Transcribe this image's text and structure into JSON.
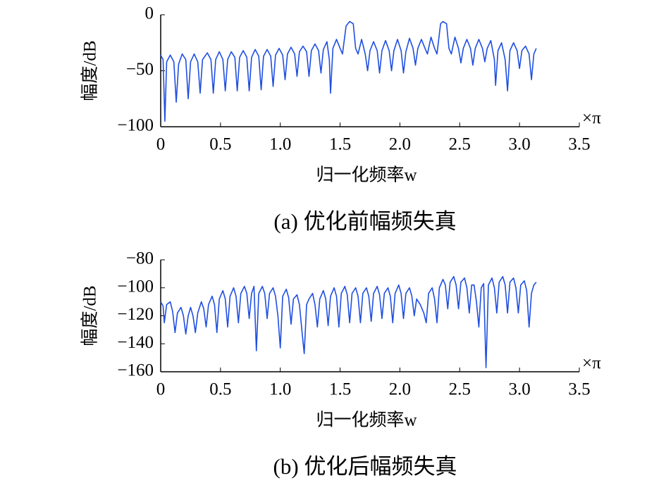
{
  "chart_data": [
    {
      "type": "line",
      "title": "(a) 优化前幅频失真",
      "ylabel": "幅度/dB",
      "xlabel": "归一化频率w",
      "xunit": "×π",
      "color": "#1f4fe0",
      "xlim": [
        0,
        3.5
      ],
      "ylim": [
        -100,
        0
      ],
      "xticks": [
        0,
        0.5,
        {
          "value": 1,
          "label": "1.0"
        },
        1.5,
        {
          "value": 2,
          "label": "2.0"
        },
        2.5,
        {
          "value": 3,
          "label": "3.0"
        },
        3.5
      ],
      "yticks": [
        {
          "value": -100,
          "label": "−100"
        },
        {
          "value": -50,
          "label": "−50"
        },
        0
      ],
      "x": [
        0,
        0.02,
        0.035,
        0.05,
        0.08,
        0.11,
        0.13,
        0.15,
        0.18,
        0.21,
        0.23,
        0.25,
        0.28,
        0.31,
        0.33,
        0.35,
        0.39,
        0.42,
        0.44,
        0.46,
        0.49,
        0.52,
        0.54,
        0.56,
        0.59,
        0.62,
        0.64,
        0.66,
        0.69,
        0.72,
        0.74,
        0.76,
        0.79,
        0.82,
        0.84,
        0.86,
        0.89,
        0.92,
        0.94,
        0.96,
        0.99,
        1.02,
        1.04,
        1.06,
        1.09,
        1.12,
        1.14,
        1.16,
        1.19,
        1.22,
        1.24,
        1.26,
        1.29,
        1.32,
        1.34,
        1.36,
        1.39,
        1.41,
        1.42,
        1.44,
        1.47,
        1.5,
        1.52,
        1.55,
        1.58,
        1.61,
        1.63,
        1.65,
        1.68,
        1.71,
        1.73,
        1.75,
        1.78,
        1.81,
        1.83,
        1.85,
        1.88,
        1.91,
        1.93,
        1.95,
        1.98,
        2.01,
        2.03,
        2.05,
        2.08,
        2.11,
        2.13,
        2.15,
        2.18,
        2.21,
        2.23,
        2.26,
        2.29,
        2.31,
        2.34,
        2.36,
        2.39,
        2.41,
        2.43,
        2.46,
        2.49,
        2.51,
        2.53,
        2.56,
        2.59,
        2.61,
        2.63,
        2.66,
        2.69,
        2.71,
        2.73,
        2.76,
        2.79,
        2.8,
        2.82,
        2.85,
        2.88,
        2.9,
        2.92,
        2.95,
        2.98,
        3.0,
        3.02,
        3.05,
        3.08,
        3.1,
        3.12,
        3.14
      ],
      "values": [
        -36,
        -40,
        -95,
        -42,
        -36,
        -42,
        -78,
        -44,
        -35,
        -40,
        -75,
        -42,
        -35,
        -42,
        -70,
        -40,
        -34,
        -40,
        -70,
        -40,
        -33,
        -40,
        -68,
        -40,
        -33,
        -38,
        -68,
        -38,
        -32,
        -38,
        -68,
        -38,
        -31,
        -37,
        -67,
        -37,
        -31,
        -37,
        -64,
        -36,
        -30,
        -36,
        -58,
        -35,
        -29,
        -35,
        -55,
        -33,
        -28,
        -33,
        -55,
        -32,
        -26,
        -32,
        -52,
        -31,
        -24,
        -40,
        -70,
        -30,
        -22,
        -30,
        -35,
        -10,
        -6,
        -8,
        -30,
        -35,
        -22,
        -35,
        -50,
        -32,
        -24,
        -32,
        -52,
        -32,
        -23,
        -32,
        -50,
        -32,
        -22,
        -32,
        -52,
        -33,
        -21,
        -30,
        -45,
        -30,
        -22,
        -30,
        -35,
        -20,
        -30,
        -35,
        -8,
        -6,
        -8,
        -30,
        -35,
        -20,
        -30,
        -43,
        -30,
        -22,
        -30,
        -45,
        -30,
        -22,
        -30,
        -42,
        -30,
        -23,
        -40,
        -63,
        -32,
        -25,
        -40,
        -68,
        -32,
        -25,
        -32,
        -48,
        -32,
        -28,
        -35,
        -58,
        -35,
        -30
      ]
    },
    {
      "type": "line",
      "title": "(b) 优化后幅频失真",
      "ylabel": "幅度/dB",
      "xlabel": "归一化频率w",
      "xunit": "×π",
      "color": "#1f4fe0",
      "xlim": [
        0,
        3.5
      ],
      "ylim": [
        -160,
        -80
      ],
      "xticks": [
        0,
        0.5,
        {
          "value": 1,
          "label": "1.0"
        },
        1.5,
        {
          "value": 2,
          "label": "2.0"
        },
        2.5,
        {
          "value": 3,
          "label": "3.0"
        },
        3.5
      ],
      "yticks": [
        {
          "value": -160,
          "label": "−160"
        },
        {
          "value": -140,
          "label": "−140"
        },
        {
          "value": -120,
          "label": "−120"
        },
        {
          "value": -100,
          "label": "−100"
        },
        {
          "value": -80,
          "label": "−80"
        }
      ],
      "x": [
        0,
        0.02,
        0.03,
        0.05,
        0.08,
        0.1,
        0.12,
        0.14,
        0.17,
        0.19,
        0.21,
        0.23,
        0.25,
        0.27,
        0.29,
        0.31,
        0.34,
        0.36,
        0.38,
        0.4,
        0.43,
        0.45,
        0.47,
        0.49,
        0.52,
        0.54,
        0.56,
        0.58,
        0.61,
        0.63,
        0.65,
        0.67,
        0.7,
        0.72,
        0.74,
        0.76,
        0.78,
        0.8,
        0.82,
        0.85,
        0.87,
        0.89,
        0.91,
        0.94,
        0.96,
        0.98,
        1.0,
        1.02,
        1.05,
        1.07,
        1.09,
        1.11,
        1.14,
        1.16,
        1.18,
        1.2,
        1.22,
        1.24,
        1.27,
        1.29,
        1.31,
        1.33,
        1.36,
        1.38,
        1.4,
        1.42,
        1.45,
        1.47,
        1.49,
        1.51,
        1.54,
        1.56,
        1.58,
        1.6,
        1.63,
        1.65,
        1.67,
        1.69,
        1.72,
        1.74,
        1.76,
        1.78,
        1.81,
        1.83,
        1.85,
        1.87,
        1.9,
        1.92,
        1.94,
        1.96,
        1.99,
        2.01,
        2.03,
        2.05,
        2.08,
        2.1,
        2.12,
        2.14,
        2.17,
        2.2,
        2.22,
        2.24,
        2.27,
        2.29,
        2.31,
        2.33,
        2.36,
        2.38,
        2.4,
        2.42,
        2.45,
        2.47,
        2.49,
        2.51,
        2.54,
        2.56,
        2.58,
        2.6,
        2.62,
        2.64,
        2.66,
        2.68,
        2.7,
        2.72,
        2.74,
        2.77,
        2.79,
        2.81,
        2.83,
        2.86,
        2.88,
        2.9,
        2.92,
        2.95,
        2.97,
        2.99,
        3.01,
        3.04,
        3.06,
        3.08,
        3.1,
        3.12,
        3.14
      ],
      "values": [
        -110,
        -113,
        -125,
        -112,
        -110,
        -117,
        -132,
        -118,
        -114,
        -120,
        -133,
        -120,
        -114,
        -120,
        -132,
        -118,
        -110,
        -115,
        -128,
        -112,
        -106,
        -112,
        -132,
        -108,
        -102,
        -108,
        -128,
        -106,
        -100,
        -106,
        -125,
        -104,
        -99,
        -104,
        -122,
        -104,
        -99,
        -145,
        -104,
        -99,
        -104,
        -122,
        -104,
        -100,
        -106,
        -120,
        -143,
        -106,
        -101,
        -107,
        -126,
        -108,
        -105,
        -112,
        -130,
        -147,
        -112,
        -108,
        -104,
        -112,
        -128,
        -108,
        -102,
        -108,
        -127,
        -106,
        -100,
        -106,
        -128,
        -104,
        -99,
        -105,
        -125,
        -104,
        -100,
        -106,
        -125,
        -104,
        -100,
        -106,
        -124,
        -104,
        -99,
        -105,
        -122,
        -104,
        -100,
        -106,
        -125,
        -104,
        -98,
        -104,
        -122,
        -104,
        -100,
        -106,
        -120,
        -108,
        -112,
        -118,
        -125,
        -104,
        -100,
        -108,
        -125,
        -100,
        -94,
        -98,
        -115,
        -96,
        -92,
        -98,
        -115,
        -96,
        -93,
        -100,
        -118,
        -98,
        -98,
        -110,
        -128,
        -100,
        -97,
        -157,
        -98,
        -93,
        -100,
        -118,
        -96,
        -92,
        -98,
        -118,
        -96,
        -93,
        -100,
        -118,
        -98,
        -95,
        -102,
        -128,
        -104,
        -98,
        -96
      ]
    }
  ]
}
